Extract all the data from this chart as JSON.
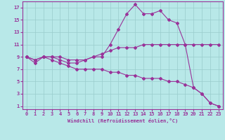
{
  "line1_x": [
    0,
    1,
    2,
    3,
    4,
    5,
    6,
    7,
    8,
    9,
    10,
    11,
    12,
    13,
    14,
    15,
    16,
    17,
    18,
    19,
    20,
    21,
    22,
    23
  ],
  "line1_y": [
    9,
    8,
    9,
    9,
    8.5,
    8,
    8,
    8.5,
    9,
    9,
    11,
    13.5,
    16,
    17.5,
    16,
    16,
    16.5,
    15,
    14.5,
    11,
    4,
    3,
    1.5,
    1
  ],
  "line2_x": [
    0,
    1,
    2,
    3,
    4,
    5,
    6,
    7,
    8,
    9,
    10,
    11,
    12,
    13,
    14,
    15,
    16,
    17,
    18,
    19,
    20,
    21,
    22,
    23
  ],
  "line2_y": [
    9,
    8.5,
    9,
    9,
    9,
    8.5,
    8.5,
    8.5,
    9,
    9.5,
    10,
    10.5,
    10.5,
    10.5,
    11,
    11,
    11,
    11,
    11,
    11,
    11,
    11,
    11,
    11
  ],
  "line3_x": [
    0,
    1,
    2,
    3,
    4,
    5,
    6,
    7,
    8,
    9,
    10,
    11,
    12,
    13,
    14,
    15,
    16,
    17,
    18,
    19,
    20,
    21,
    22,
    23
  ],
  "line3_y": [
    9,
    8.5,
    9,
    8.5,
    8,
    7.5,
    7,
    7,
    7,
    7,
    6.5,
    6.5,
    6,
    6,
    5.5,
    5.5,
    5.5,
    5,
    5,
    4.5,
    4,
    3,
    1.5,
    1
  ],
  "color": "#993399",
  "bg_color": "#b8e8e8",
  "grid_color": "#99cccc",
  "xlabel": "Windchill (Refroidissement éolien,°C)",
  "yticks": [
    1,
    3,
    5,
    7,
    9,
    11,
    13,
    15,
    17
  ],
  "xticks": [
    0,
    1,
    2,
    3,
    4,
    5,
    6,
    7,
    8,
    9,
    10,
    11,
    12,
    13,
    14,
    15,
    16,
    17,
    18,
    19,
    20,
    21,
    22,
    23
  ],
  "ylim": [
    0.5,
    18
  ],
  "xlim": [
    -0.5,
    23.5
  ]
}
